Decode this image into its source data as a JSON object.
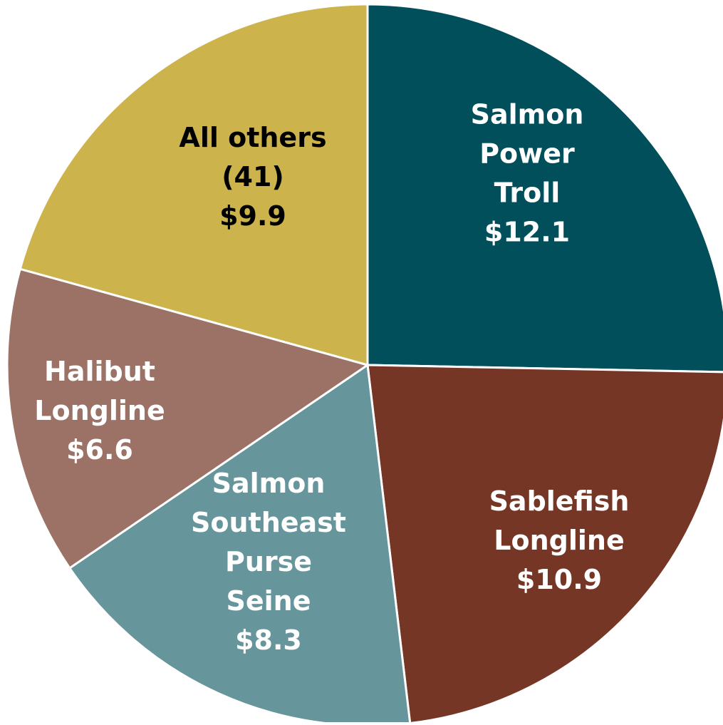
{
  "chart_data": {
    "type": "pie",
    "categories": [
      [
        "Salmon",
        "Power",
        "Troll"
      ],
      [
        "Sablefish",
        "Longline"
      ],
      [
        "Salmon",
        "Southeast",
        "Purse",
        "Seine"
      ],
      [
        "Halibut",
        "Longline"
      ],
      [
        "All others",
        "(41)"
      ]
    ],
    "values": [
      12.1,
      10.9,
      8.3,
      6.6,
      9.9
    ],
    "value_labels": [
      "$12.1",
      "$10.9",
      "$8.3",
      "$6.6",
      "$9.9"
    ],
    "colors": [
      "#004f5b",
      "#763626",
      "#66959c",
      "#9c7266",
      "#cdb34c"
    ],
    "label_colors": [
      "#ffffff",
      "#ffffff",
      "#ffffff",
      "#ffffff",
      "#000000"
    ]
  }
}
